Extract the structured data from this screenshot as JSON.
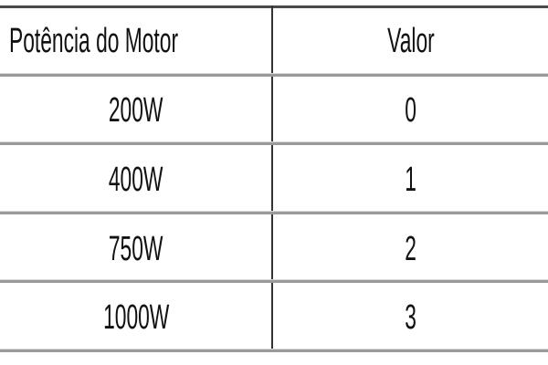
{
  "table": {
    "headers": [
      "Potência do Motor",
      "Valor"
    ],
    "rows": [
      [
        "200W",
        "0"
      ],
      [
        "400W",
        "1"
      ],
      [
        "750W",
        "2"
      ],
      [
        "1000W",
        "3"
      ]
    ]
  }
}
